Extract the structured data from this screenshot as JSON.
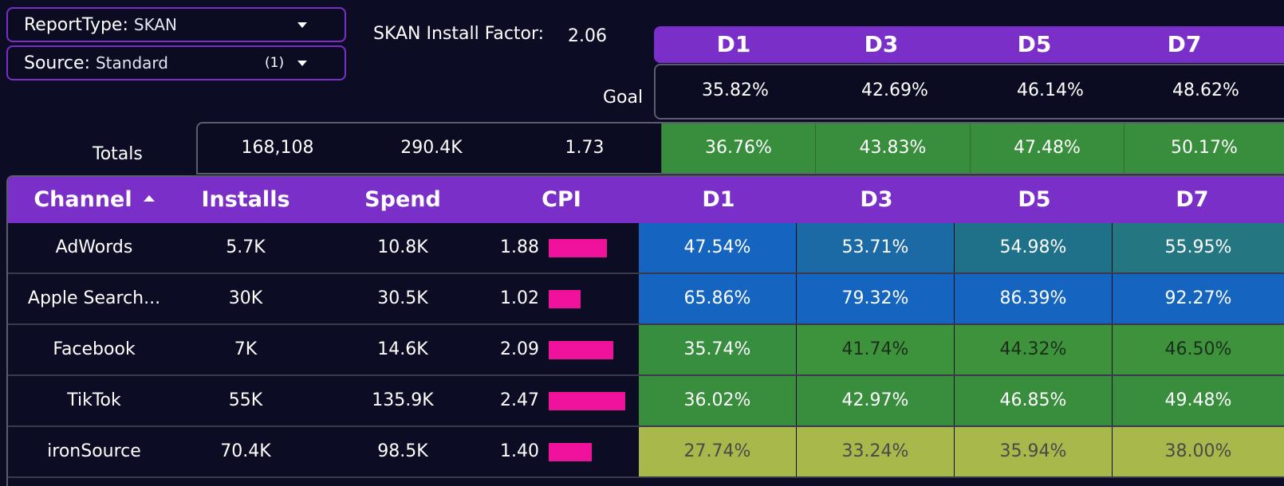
{
  "filters": {
    "report_type": {
      "label": "ReportType",
      "value": "SKAN"
    },
    "source": {
      "label": "Source",
      "value": "Standard",
      "count": "(1)"
    }
  },
  "install_factor": {
    "label": "SKAN Install Factor:",
    "value": "2.06"
  },
  "day_headers": [
    "D1",
    "D3",
    "D5",
    "D7"
  ],
  "goal": {
    "label": "Goal",
    "values": [
      "35.82%",
      "42.69%",
      "46.14%",
      "48.62%"
    ]
  },
  "totals": {
    "label": "Totals",
    "installs": "168,108",
    "spend": "290.4K",
    "cpi": "1.73",
    "days": [
      "36.76%",
      "43.83%",
      "47.48%",
      "50.17%"
    ]
  },
  "table": {
    "headers": {
      "channel": "Channel",
      "installs": "Installs",
      "spend": "Spend",
      "cpi": "CPI",
      "d1": "D1",
      "d3": "D3",
      "d5": "D5",
      "d7": "D7"
    },
    "rows": [
      {
        "channel": "AdWords",
        "installs": "5.7K",
        "spend": "10.8K",
        "cpi": "1.88",
        "days": [
          "47.54%",
          "53.71%",
          "54.98%",
          "55.95%"
        ],
        "day_colors": [
          "#1565c0",
          "#1b6aa6",
          "#1f7089",
          "#247681"
        ],
        "day_text": [
          "#ffffff",
          "#ffffff",
          "#ffffff",
          "#ffffff"
        ]
      },
      {
        "channel": "Apple Search...",
        "installs": "30K",
        "spend": "30.5K",
        "cpi": "1.02",
        "days": [
          "65.86%",
          "79.32%",
          "86.39%",
          "92.27%"
        ],
        "day_colors": [
          "#1565c0",
          "#1565c0",
          "#1565c0",
          "#1565c0"
        ],
        "day_text": [
          "#ffffff",
          "#ffffff",
          "#ffffff",
          "#ffffff"
        ]
      },
      {
        "channel": "Facebook",
        "installs": "7K",
        "spend": "14.6K",
        "cpi": "2.09",
        "days": [
          "35.74%",
          "41.74%",
          "44.32%",
          "46.50%"
        ],
        "day_colors": [
          "#378e3f",
          "#3d933c",
          "#3e923c",
          "#3e923c"
        ],
        "day_text": [
          "#ffffff",
          "#1b2e1b",
          "#1b2e1b",
          "#1b2e1b"
        ]
      },
      {
        "channel": "TikTok",
        "installs": "55K",
        "spend": "135.9K",
        "cpi": "2.47",
        "days": [
          "36.02%",
          "42.97%",
          "46.85%",
          "49.48%"
        ],
        "day_colors": [
          "#388e3c",
          "#388e3c",
          "#388e3c",
          "#388e3c"
        ],
        "day_text": [
          "#ffffff",
          "#ffffff",
          "#ffffff",
          "#ffffff"
        ]
      },
      {
        "channel": "ironSource",
        "installs": "70.4K",
        "spend": "98.5K",
        "cpi": "1.40",
        "days": [
          "27.74%",
          "33.24%",
          "35.94%",
          "38.00%"
        ],
        "day_colors": [
          "#a8b84a",
          "#a8b84a",
          "#a8b84a",
          "#a8b84a"
        ],
        "day_text": [
          "#4a4a4a",
          "#4a4a4a",
          "#4a4a4a",
          "#4a4a4a"
        ]
      }
    ]
  },
  "colors": {
    "accent": "#7b2fc9",
    "cpi_bar": "#f0129b",
    "background": "#0c0c24"
  }
}
